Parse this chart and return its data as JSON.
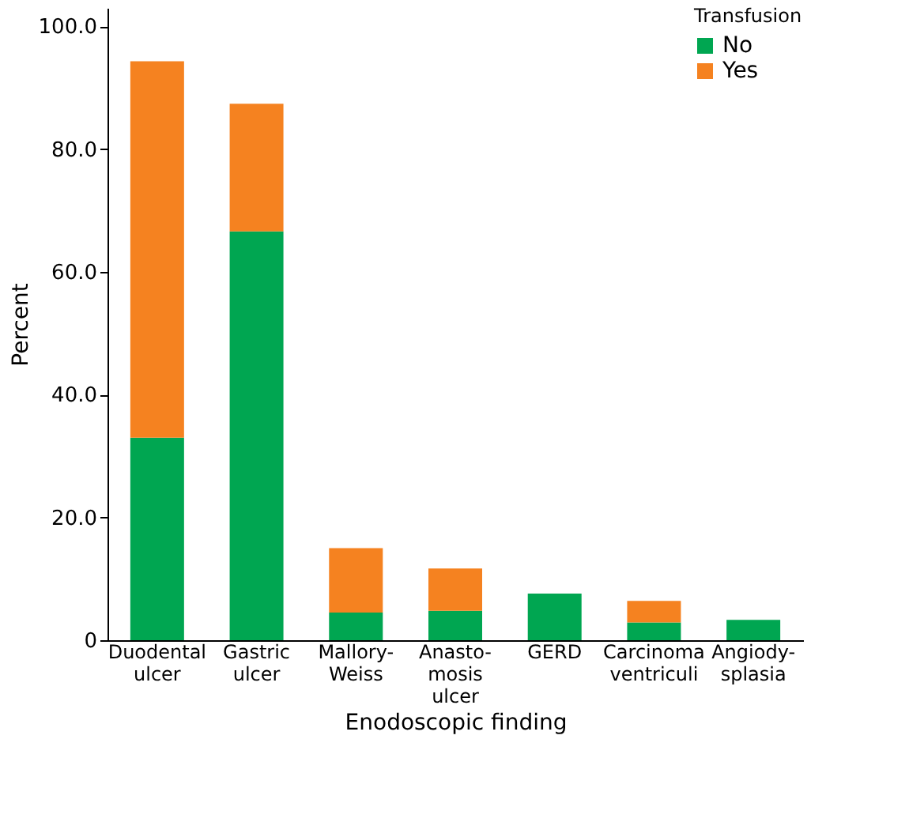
{
  "chart_data": {
    "type": "bar",
    "stacked": true,
    "xlabel": "Enodoscopic finding",
    "ylabel": "Percent",
    "legend_title": "Transfusion",
    "legend": "top right",
    "grid": false,
    "categories": [
      "Duodental\nulcer",
      "Gastric\nulcer",
      "Mallory-\nWeiss",
      "Anasto-\nmosis\nulcer",
      "GERD",
      "Carcinoma\nventriculi",
      "Angiody-\nsplasia"
    ],
    "series": [
      {
        "name": "No",
        "color": "#00a651",
        "values": [
          33.0,
          66.6,
          4.5,
          4.8,
          7.6,
          2.9,
          3.3
        ]
      },
      {
        "name": "Yes",
        "color": "#f58220",
        "values": [
          61.3,
          20.8,
          10.5,
          6.9,
          null,
          3.5,
          null
        ]
      }
    ],
    "ylim": [
      0,
      103
    ],
    "yticks": [
      0,
      {
        "value": 20,
        "label": "20.0"
      },
      {
        "value": 40,
        "label": "40.0"
      },
      {
        "value": 60,
        "label": "60.0"
      },
      {
        "value": 80,
        "label": "80.0"
      },
      {
        "value": 100,
        "label": "100.0"
      }
    ]
  }
}
